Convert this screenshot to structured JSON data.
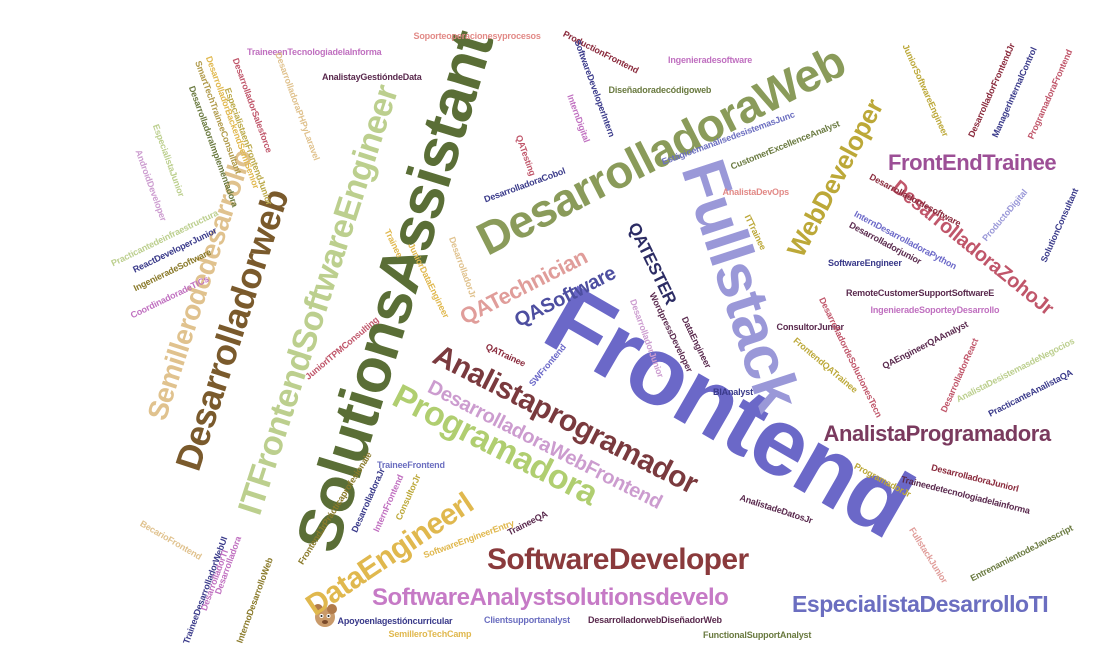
{
  "title": "",
  "words": [
    {
      "text": "Frontend",
      "color": "#6b68c8"
    },
    {
      "text": "SolutionsAssistant",
      "color": "#5a6e36"
    },
    {
      "text": "Fullstack",
      "color": "#9a98d8"
    },
    {
      "text": "DesarrolladoraWeb",
      "color": "#8a9b5a"
    },
    {
      "text": "ITFrontendSoftwareEngineer",
      "color": "#bccf8e"
    },
    {
      "text": "Desarrolladorweb",
      "color": "#7a5a2c"
    },
    {
      "text": "Semillerodedesarrollo",
      "color": "#e0c28e"
    },
    {
      "text": "Analistaprogramador",
      "color": "#7a3a3e"
    },
    {
      "text": "Programadora",
      "color": "#b0ce70"
    },
    {
      "text": "DesarrolladoraWebFrontend",
      "color": "#cc9ccf"
    },
    {
      "text": "SoftwareDeveloper",
      "color": "#8a3a3c"
    },
    {
      "text": "DataEngineerl",
      "color": "#e0b84e"
    },
    {
      "text": "SoftwareAnalystsolutionsdevelo",
      "color": "#c67ac6"
    },
    {
      "text": "EspecialistaDesarrolloTI",
      "color": "#6b6ec0"
    },
    {
      "text": "AnalistaProgramadora",
      "color": "#7a3a5e"
    },
    {
      "text": "WebDeveloper",
      "color": "#bca838"
    },
    {
      "text": "DesarrolladoraZohoJr",
      "color": "#c0566a"
    },
    {
      "text": "FrontEndTrainee",
      "color": "#9c4f96"
    },
    {
      "text": "QATechnician",
      "color": "#e09d9a"
    },
    {
      "text": "QASoftware",
      "color": "#4d4ea0"
    },
    {
      "text": "QATESTER",
      "color": "#2c2c64"
    },
    {
      "text": "Soporteoperacionesyprocesos",
      "color": "#e28a87"
    },
    {
      "text": "TraineeenTecnologiadelaInforma",
      "color": "#c070c0"
    },
    {
      "text": "AnalistayGestióndeData",
      "color": "#5a2a4e"
    },
    {
      "text": "DesarrolladoraPHPyLaravel",
      "color": "#e0c28e"
    },
    {
      "text": "SmartTechTraineeConsultant",
      "color": "#b09a4a"
    },
    {
      "text": "DesarrolladorBackendSemiSenior",
      "color": "#e0b84e"
    },
    {
      "text": "DesarrolladoraImplementadora",
      "color": "#6a7a40"
    },
    {
      "text": "DesarrolladorSalesforce",
      "color": "#c0566a"
    },
    {
      "text": "EspecialistaenFrontendJunior",
      "color": "#bcaa4a"
    },
    {
      "text": "ProductionFrontend",
      "color": "#8a2a3c"
    },
    {
      "text": "SoftwareDeveloperIntern",
      "color": "#3a3a8a"
    },
    {
      "text": "InternDigital",
      "color": "#c070c0"
    },
    {
      "text": "Diseñadoradecódigoweb",
      "color": "#6a7a40"
    },
    {
      "text": "Ingenieradesoftware",
      "color": "#c070c0"
    },
    {
      "text": "EstágioemanálisedesistemasJunc",
      "color": "#6b6ec0"
    },
    {
      "text": "CustomerExcellenceAnalyst",
      "color": "#6a7a40"
    },
    {
      "text": "AnalistaDevOps",
      "color": "#e28a87"
    },
    {
      "text": "JuniorSoftwareEngineer",
      "color": "#bca838"
    },
    {
      "text": "DesarrolladorFrontendJr",
      "color": "#8a2a3c"
    },
    {
      "text": "ManagerInternalControl",
      "color": "#3a3a8a"
    },
    {
      "text": "ProgramadoraFrontend",
      "color": "#c0566a"
    },
    {
      "text": "EspecialistaJunior",
      "color": "#bccf8e"
    },
    {
      "text": "AndroidDeveloper",
      "color": "#cc9ccf"
    },
    {
      "text": "CoordinadoradeTICs",
      "color": "#c070c0"
    },
    {
      "text": "Practicantedeinfraestructura",
      "color": "#bccf8e"
    },
    {
      "text": "ReactDeveloperJunior",
      "color": "#3a3a8a"
    },
    {
      "text": "IngenieradeSoftware",
      "color": "#8a7a2a"
    },
    {
      "text": "QATesting",
      "color": "#c0566a"
    },
    {
      "text": "DesarrolladoraCobol",
      "color": "#3a3a8a"
    },
    {
      "text": "Desarrolladordesoftware",
      "color": "#8a2a3c"
    },
    {
      "text": "InternDesarrolladoraPython",
      "color": "#6b68c8"
    },
    {
      "text": "Desarrolladorjunior",
      "color": "#5a2a4e"
    },
    {
      "text": "SoftwareEngineer",
      "color": "#3a3a8a"
    },
    {
      "text": "ProductoDigital",
      "color": "#9a98d8"
    },
    {
      "text": "SolutionConsultant",
      "color": "#3a3a8a"
    },
    {
      "text": "ITTrainee",
      "color": "#bca838"
    },
    {
      "text": "RemoteCustomerSupportSoftwareE",
      "color": "#5a2a4e"
    },
    {
      "text": "IngenieradeSoporteyDesarrollo",
      "color": "#c070c0"
    },
    {
      "text": "ConsultorJunior",
      "color": "#5a2a4e"
    },
    {
      "text": "DesarrolladordeSolucionesTecn",
      "color": "#c0566a"
    },
    {
      "text": "QAEngineerQAAnalyst",
      "color": "#5a2a4e"
    },
    {
      "text": "DesarrolladorReact",
      "color": "#c0566a"
    },
    {
      "text": "AnalistaDesistemasdeNegocios",
      "color": "#bccf8e"
    },
    {
      "text": "PracticanteAnalistaQA",
      "color": "#3a3a8a"
    },
    {
      "text": "FrontendQATrainee",
      "color": "#bca838"
    },
    {
      "text": "Trainee",
      "color": "#e0b84e"
    },
    {
      "text": "JuniorDataEngineer",
      "color": "#e0b84e"
    },
    {
      "text": "DesarrolladorJr",
      "color": "#e0c28e"
    },
    {
      "text": "JuniorITPMConsulting",
      "color": "#c0566a"
    },
    {
      "text": "WordpressDeveloper",
      "color": "#5a2a4e"
    },
    {
      "text": "DataEngineer",
      "color": "#5a2a4e"
    },
    {
      "text": "DesarrolladorJunior",
      "color": "#cc9ccf"
    },
    {
      "text": "QATrainee",
      "color": "#8a2a3c"
    },
    {
      "text": "SWFrontend",
      "color": "#6b68c8"
    },
    {
      "text": "BIAnalyst",
      "color": "#3a3a8a"
    },
    {
      "text": "TraineeFrontend",
      "color": "#6b6ec0"
    },
    {
      "text": "FrontendJrPrácticaprofesionale",
      "color": "#8a7a2a"
    },
    {
      "text": "DesarrolladoraJr",
      "color": "#3a3a8a"
    },
    {
      "text": "InternFrontend",
      "color": "#c070c0"
    },
    {
      "text": "ConsultorJr",
      "color": "#bca838"
    },
    {
      "text": "SoftwareEngineerEntry",
      "color": "#e0b84e"
    },
    {
      "text": "TraineeQA",
      "color": "#5a2a4e"
    },
    {
      "text": "BecarioFrontend",
      "color": "#e0c28e"
    },
    {
      "text": "TraineeDesarrolladorWebUI",
      "color": "#3a3a8a"
    },
    {
      "text": "DesarrolladorTI",
      "color": "#c070c0"
    },
    {
      "text": "InternoDesarrolloWeb",
      "color": "#8a7a2a"
    },
    {
      "text": "Desarrolladora",
      "color": "#c070c0"
    },
    {
      "text": "AnalistadeDatosJr",
      "color": "#5a2a4e"
    },
    {
      "text": "ProgramadorJr",
      "color": "#bca838"
    },
    {
      "text": "Traineedetecnologiadelainforma",
      "color": "#5a2a4e"
    },
    {
      "text": "DesarrolladoraJuniorl",
      "color": "#8a2a3c"
    },
    {
      "text": "FullstackJunior",
      "color": "#e09d9a"
    },
    {
      "text": "EntrenamientodeJavascript",
      "color": "#6a7a40"
    },
    {
      "text": "Apoyoenlagestióncurricular",
      "color": "#3a3a8a"
    },
    {
      "text": "Clientsupportanalyst",
      "color": "#6b6ec0"
    },
    {
      "text": "DesarrolladorwebDiseñadorWeb",
      "color": "#5a2a4e"
    },
    {
      "text": "SemilleroTechCamp",
      "color": "#e0b84e"
    },
    {
      "text": "FunctionalSupportAnalyst",
      "color": "#6a7a40"
    }
  ]
}
